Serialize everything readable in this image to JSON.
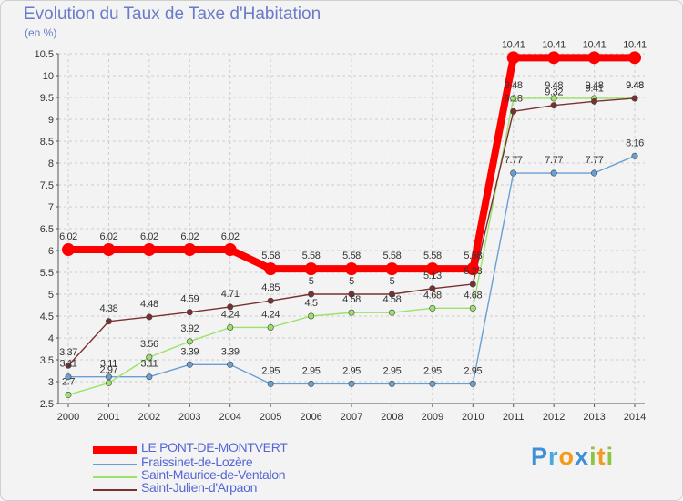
{
  "chart_data": {
    "type": "line",
    "title": "Evolution du Taux de Taxe d'Habitation",
    "unit_label": "(en %)",
    "xlabel": "",
    "ylabel": "",
    "ylim": [
      2.5,
      10.5
    ],
    "yticks": [
      "2.5",
      "3",
      "3.5",
      "4",
      "4.5",
      "5",
      "5.5",
      "6",
      "6.5",
      "7",
      "7.5",
      "8",
      "8.5",
      "9",
      "9.5",
      "10",
      "10.5"
    ],
    "x": [
      "2000",
      "2001",
      "2002",
      "2003",
      "2004",
      "2005",
      "2006",
      "2007",
      "2008",
      "2009",
      "2010",
      "2011",
      "2012",
      "2013",
      "2014"
    ],
    "grid": true,
    "series": [
      {
        "name": "LE PONT-DE-MONTVERT",
        "color": "#ff0000",
        "values": [
          6.02,
          6.02,
          6.02,
          6.02,
          6.02,
          5.58,
          5.58,
          5.58,
          5.58,
          5.58,
          5.58,
          10.41,
          10.41,
          10.41,
          10.41
        ],
        "labels": [
          "6.02",
          "6.02",
          "6.02",
          "6.02",
          "6.02",
          "5.58",
          "5.58",
          "5.58",
          "5.58",
          "5.58",
          "5.58",
          "10.41",
          "10.41",
          "10.41",
          "10.41"
        ]
      },
      {
        "name": "Fraissinet-de-Lozère",
        "color": "#6a9fd4",
        "values": [
          3.11,
          3.11,
          3.11,
          3.39,
          3.39,
          2.95,
          2.95,
          2.95,
          2.95,
          2.95,
          2.95,
          7.77,
          7.77,
          7.77,
          8.16
        ],
        "labels": [
          "3.11",
          "3.11",
          "3.11",
          "3.39",
          "3.39",
          "2.95",
          "2.95",
          "2.95",
          "2.95",
          "2.95",
          "2.95",
          "7.77",
          "7.77",
          "7.77",
          "8.16"
        ]
      },
      {
        "name": "Saint-Maurice-de-Ventalon",
        "color": "#9be26b",
        "values": [
          2.7,
          2.97,
          3.56,
          3.92,
          4.24,
          4.24,
          4.5,
          4.58,
          4.58,
          4.68,
          4.68,
          9.48,
          9.48,
          9.48,
          9.48
        ],
        "labels": [
          "2.7",
          "2.97",
          "3.56",
          "3.92",
          "4.24",
          "4.24",
          "4.5",
          "4.58",
          "4.58",
          "4.68",
          "4.68",
          "9.48",
          "9.48",
          "9.48",
          "9.48"
        ]
      },
      {
        "name": "Saint-Julien-d'Arpaon",
        "color": "#7a3030",
        "values": [
          3.37,
          4.38,
          4.48,
          4.59,
          4.71,
          4.85,
          5,
          5,
          5,
          5.13,
          5.23,
          9.18,
          9.32,
          9.41,
          9.48
        ],
        "labels": [
          "3.37",
          "4.38",
          "4.48",
          "4.59",
          "4.71",
          "4.85",
          "5",
          "5",
          "5",
          "5.13",
          "5.23",
          "9.18",
          "9.32",
          "9.41",
          "9.48"
        ]
      }
    ]
  },
  "legend": {
    "items": [
      "LE PONT-DE-MONTVERT",
      "Fraissinet-de-Lozère",
      "Saint-Maurice-de-Ventalon",
      "Saint-Julien-d'Arpaon"
    ]
  },
  "logo": {
    "letters": [
      "P",
      "r",
      "o",
      "x",
      "i",
      "t",
      "i"
    ],
    "colors": [
      "#3f8fd8",
      "#4aa8e0",
      "#f39a1c",
      "#3f8fd8",
      "#8cc63f",
      "#f39a1c",
      "#8cc63f"
    ]
  }
}
